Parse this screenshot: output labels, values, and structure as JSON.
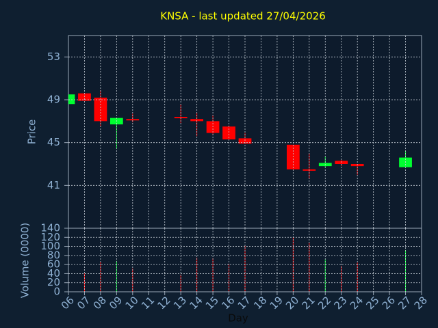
{
  "chart_data": [
    {
      "type": "candlestick",
      "title": "KNSA - last updated 27/04/2026",
      "ylabel": "Price",
      "x": [
        6,
        7,
        8,
        9,
        10,
        13,
        14,
        15,
        16,
        17,
        20,
        21,
        22,
        23,
        24,
        27
      ],
      "open": [
        48.6,
        49.6,
        49.2,
        46.7,
        47.2,
        47.4,
        47.2,
        47.0,
        46.5,
        45.4,
        44.8,
        42.5,
        42.8,
        43.3,
        43.0,
        42.7
      ],
      "high": [
        49.5,
        49.6,
        49.9,
        47.3,
        47.7,
        48.6,
        47.8,
        47.6,
        46.6,
        45.9,
        44.8,
        44.0,
        43.7,
        43.4,
        43.0,
        44.2
      ],
      "low": [
        48.6,
        48.9,
        46.5,
        44.4,
        46.9,
        46.8,
        45.6,
        45.7,
        45.3,
        44.9,
        42.5,
        41.6,
        42.7,
        42.8,
        42.0,
        42.7
      ],
      "close": [
        49.5,
        48.9,
        47.0,
        47.3,
        47.1,
        47.3,
        47.0,
        45.9,
        45.3,
        44.9,
        42.5,
        42.4,
        43.1,
        43.0,
        42.8,
        43.6
      ],
      "up_color": "#00ff30",
      "down_color": "#ff0000",
      "xlim": [
        6,
        28
      ],
      "ylim": [
        37,
        55
      ],
      "yticks": [
        41,
        45,
        49,
        53
      ],
      "grid": true
    },
    {
      "type": "bar",
      "ylabel": "Volume (0000)",
      "xlabel": "Day",
      "x": [
        6,
        7,
        8,
        9,
        10,
        13,
        14,
        15,
        16,
        17,
        20,
        21,
        22,
        23,
        24,
        27
      ],
      "values": [
        0,
        40,
        66,
        68,
        51,
        38,
        75,
        74,
        62,
        101,
        120,
        108,
        71,
        57,
        64,
        92
      ],
      "colors": [
        "#00ff30",
        "#ff0000",
        "#ff0000",
        "#00ff30",
        "#ff0000",
        "#ff0000",
        "#ff0000",
        "#ff0000",
        "#ff0000",
        "#ff0000",
        "#ff0000",
        "#ff0000",
        "#00ff30",
        "#ff0000",
        "#ff0000",
        "#00ff30"
      ],
      "xlim": [
        6,
        28
      ],
      "ylim": [
        0,
        140
      ],
      "yticks": [
        0,
        20,
        40,
        60,
        80,
        100,
        120,
        140
      ],
      "xticks": [
        {
          "value": 6,
          "label": "06"
        },
        {
          "value": 7,
          "label": "07"
        },
        {
          "value": 8,
          "label": "08"
        },
        {
          "value": 9,
          "label": "09"
        },
        10,
        11,
        12,
        13,
        14,
        15,
        16,
        17,
        18,
        19,
        20,
        21,
        22,
        23,
        24,
        25,
        26,
        27,
        28
      ],
      "grid": true
    }
  ]
}
